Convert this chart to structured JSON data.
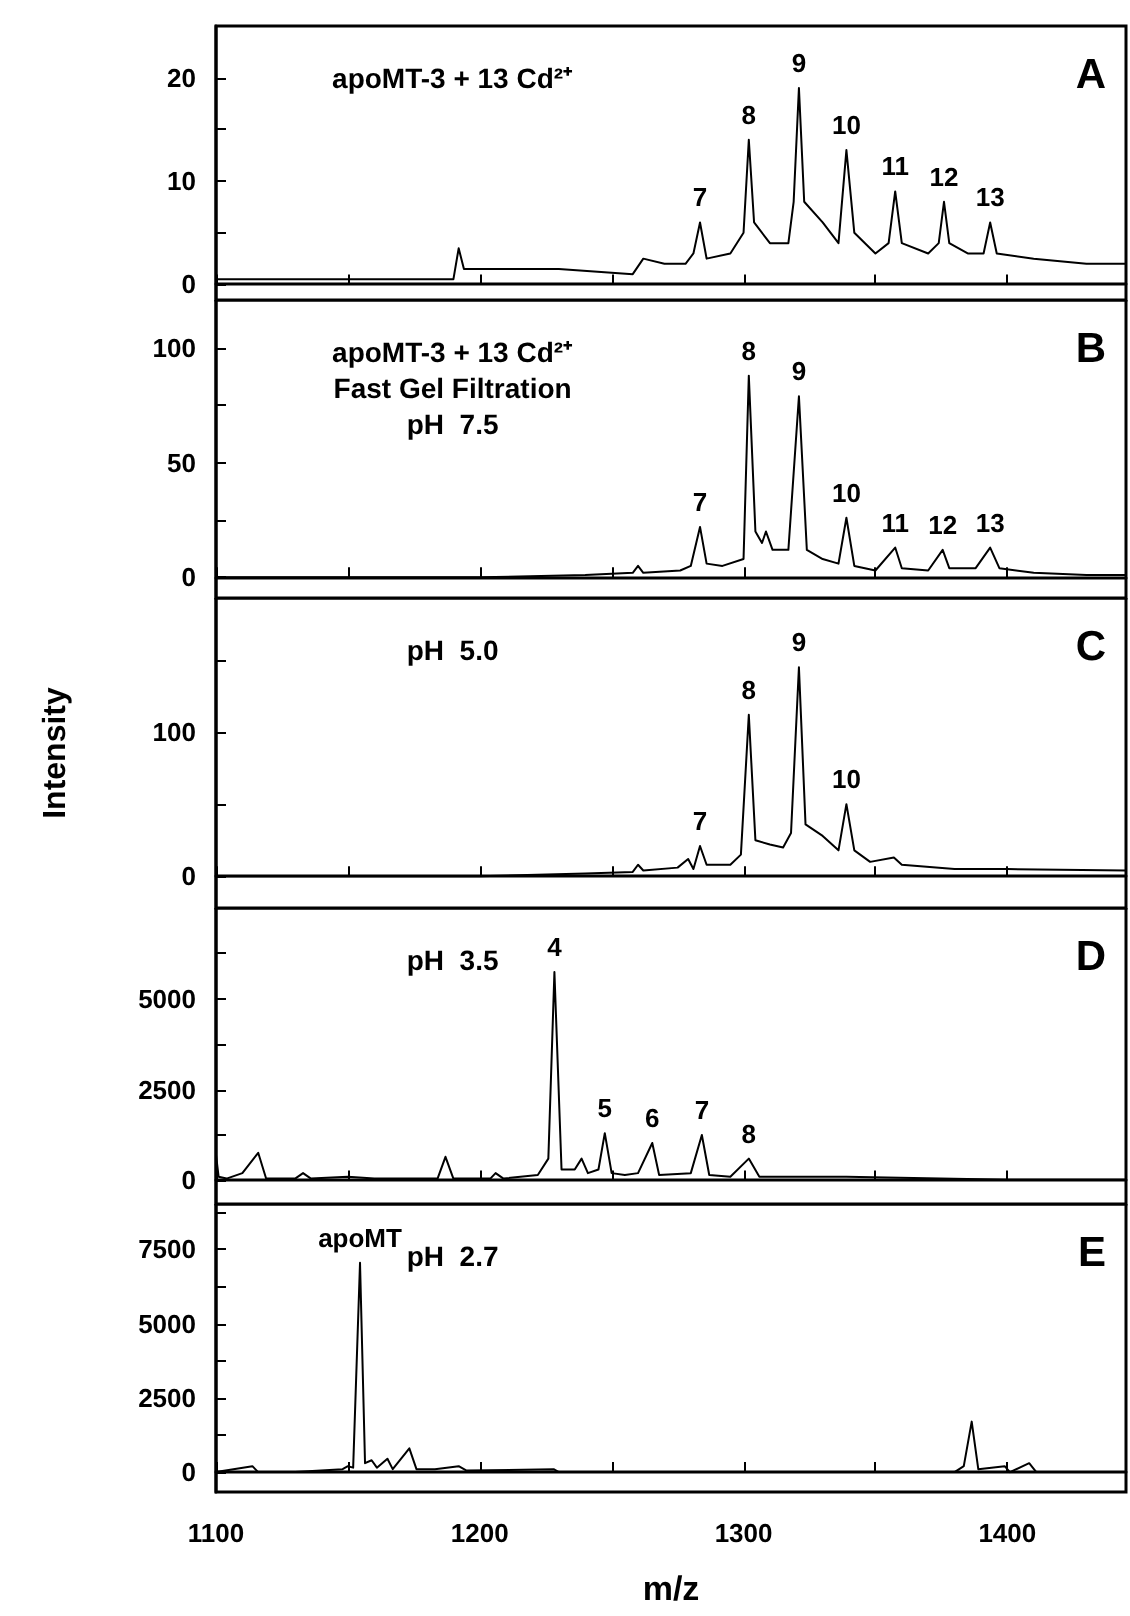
{
  "chart_data": [
    {
      "type": "line",
      "title": "A",
      "annotations": [
        "apoMT-3 + 13 Cd²⁺",
        {
          "text": "7",
          "x": 1283.5,
          "y": 6
        },
        {
          "text": "8",
          "x": 1302,
          "y": 14
        },
        {
          "text": "9",
          "x": 1321,
          "y": 19
        },
        {
          "text": "10",
          "x": 1339,
          "y": 13
        },
        {
          "text": "11",
          "x": 1357.5,
          "y": 9
        },
        {
          "text": "12",
          "x": 1376,
          "y": 8
        },
        {
          "text": "13",
          "x": 1393.5,
          "y": 6
        }
      ],
      "x": [
        1100,
        1150,
        1190,
        1192,
        1194,
        1230,
        1258,
        1262,
        1270,
        1278,
        1281,
        1283.5,
        1286,
        1295,
        1300,
        1302,
        1304,
        1310,
        1317,
        1319,
        1321,
        1323,
        1330,
        1336,
        1339,
        1342,
        1350,
        1355,
        1357.5,
        1360,
        1370,
        1374,
        1376,
        1378,
        1385,
        1391,
        1393.5,
        1396,
        1410,
        1430,
        1445
      ],
      "series": [
        {
          "color": "#000000",
          "values": [
            0.5,
            0.5,
            0.5,
            3.5,
            1.5,
            1.5,
            1,
            2.5,
            2,
            2,
            3,
            6,
            2.5,
            3,
            5,
            14,
            6,
            4,
            4,
            8,
            19,
            8,
            6,
            4,
            13,
            5,
            3,
            4,
            9,
            4,
            3,
            4,
            8,
            4,
            3,
            3,
            6,
            3,
            2.5,
            2,
            2
          ]
        }
      ],
      "xlim": [
        1100,
        1445
      ],
      "xticks": [
        1100,
        {
          "value": 1150,
          "label": null
        },
        1200,
        {
          "value": 1250,
          "label": null
        },
        1300,
        {
          "value": 1350,
          "label": null
        },
        1400
      ],
      "ylim": [
        -1.5,
        25
      ],
      "yticks": [
        0,
        {
          "value": 5,
          "label": null
        },
        10,
        {
          "value": 15,
          "label": null
        },
        20
      ],
      "tick_labels": "y"
    },
    {
      "type": "line",
      "title": "B",
      "annotations": [
        "apoMT-3 + 13 Cd²⁺",
        "Fast Gel Filtration",
        "pH  7.5",
        {
          "text": "7",
          "x": 1283.5,
          "y": 22
        },
        {
          "text": "8",
          "x": 1302,
          "y": 88
        },
        {
          "text": "9",
          "x": 1321,
          "y": 79
        },
        {
          "text": "10",
          "x": 1339,
          "y": 26
        },
        {
          "text": "11",
          "x": 1357.5,
          "y": 13
        },
        {
          "text": "12",
          "x": 1375.5,
          "y": 12
        },
        {
          "text": "13",
          "x": 1393.5,
          "y": 13
        }
      ],
      "x": [
        1100,
        1150,
        1200,
        1240,
        1258,
        1260,
        1262,
        1276,
        1280,
        1283.5,
        1286,
        1292,
        1300,
        1302,
        1304.5,
        1307,
        1308.5,
        1311,
        1317,
        1321,
        1324,
        1330,
        1336,
        1339,
        1342,
        1350,
        1357.5,
        1360,
        1370,
        1375.5,
        1378,
        1388,
        1393.5,
        1397,
        1410,
        1430,
        1445
      ],
      "series": [
        {
          "color": "#000000",
          "values": [
            0,
            0,
            0,
            1,
            2,
            5,
            2,
            3,
            5,
            22,
            6,
            5,
            8,
            88,
            20,
            15,
            20,
            12,
            12,
            79,
            12,
            8,
            6,
            26,
            5,
            3,
            13,
            4,
            3,
            12,
            4,
            4,
            13,
            4,
            2,
            1,
            1
          ]
        }
      ],
      "xlim": [
        1100,
        1445
      ],
      "xticks": [
        1100,
        {
          "value": 1150,
          "label": null
        },
        1200,
        {
          "value": 1250,
          "label": null
        },
        1300,
        {
          "value": 1350,
          "label": null
        },
        1400
      ],
      "ylim": [
        -9,
        121
      ],
      "yticks": [
        0,
        {
          "value": 25,
          "label": null
        },
        50,
        {
          "value": 75,
          "label": null
        },
        100
      ],
      "tick_labels": "y"
    },
    {
      "type": "line",
      "title": "C",
      "ylabel": "Intensity",
      "annotations": [
        "pH  5.0",
        {
          "text": "7",
          "x": 1283.5,
          "y": 21
        },
        {
          "text": "8",
          "x": 1302,
          "y": 112
        },
        {
          "text": "9",
          "x": 1321,
          "y": 145
        },
        {
          "text": "10",
          "x": 1339,
          "y": 50
        }
      ],
      "x": [
        1100,
        1200,
        1240,
        1258,
        1260,
        1262,
        1275,
        1279,
        1281,
        1283.5,
        1286,
        1295,
        1299,
        1302,
        1304.5,
        1310,
        1315,
        1318,
        1321,
        1323.5,
        1330,
        1336,
        1339,
        1342,
        1348,
        1357,
        1360,
        1380,
        1400,
        1445
      ],
      "series": [
        {
          "color": "#000000",
          "values": [
            0,
            0,
            2,
            3,
            8,
            4,
            6,
            12,
            5,
            21,
            8,
            8,
            15,
            112,
            25,
            22,
            20,
            30,
            145,
            36,
            28,
            18,
            50,
            18,
            10,
            13,
            8,
            5,
            5,
            4
          ]
        }
      ],
      "xlim": [
        1100,
        1445
      ],
      "xticks": [
        1100,
        {
          "value": 1150,
          "label": null
        },
        1200,
        {
          "value": 1250,
          "label": null
        },
        1300,
        {
          "value": 1350,
          "label": null
        },
        1400
      ],
      "ylim": [
        -22,
        193
      ],
      "yticks": [
        0,
        {
          "value": 50,
          "label": null
        },
        100,
        {
          "value": 150,
          "label": null
        }
      ],
      "tick_labels": "y"
    },
    {
      "type": "line",
      "title": "D",
      "annotations": [
        "pH  3.5",
        {
          "text": "4",
          "x": 1228.3,
          "y": 5740
        },
        {
          "text": "5",
          "x": 1247.4,
          "y": 1300
        },
        {
          "text": "6",
          "x": 1265.4,
          "y": 1030
        },
        {
          "text": "7",
          "x": 1284.2,
          "y": 1250
        },
        {
          "text": "8",
          "x": 1302,
          "y": 600
        }
      ],
      "x": [
        1100,
        1101,
        1104,
        1110,
        1116,
        1119,
        1130,
        1133,
        1136,
        1150,
        1160,
        1184,
        1187,
        1190,
        1204,
        1206,
        1209,
        1222,
        1226,
        1228.3,
        1231,
        1236,
        1238.6,
        1241,
        1245,
        1247.4,
        1250,
        1255,
        1260,
        1265.4,
        1268,
        1280,
        1284.2,
        1287,
        1295,
        1302,
        1306,
        1320.5,
        1339,
        1400,
        1445
      ],
      "series": [
        {
          "color": "#000000",
          "values": [
            700,
            100,
            50,
            200,
            760,
            50,
            50,
            200,
            50,
            100,
            50,
            50,
            650,
            50,
            50,
            200,
            50,
            150,
            600,
            5740,
            300,
            300,
            600,
            200,
            300,
            1300,
            200,
            150,
            200,
            1030,
            150,
            200,
            1250,
            150,
            100,
            600,
            100,
            100,
            100,
            20,
            20
          ]
        }
      ],
      "xlim": [
        1100,
        1445
      ],
      "xticks": [
        1100,
        {
          "value": 1150,
          "label": null
        },
        1200,
        {
          "value": 1250,
          "label": null
        },
        1300,
        {
          "value": 1350,
          "label": null
        },
        1400
      ],
      "ylim": [
        -650,
        7500
      ],
      "yticks": [
        0,
        {
          "value": 1250,
          "label": null
        },
        2500,
        {
          "value": 3750,
          "label": null
        },
        5000,
        {
          "value": 6250,
          "label": null
        }
      ],
      "tick_labels": "y"
    },
    {
      "type": "line",
      "title": "E",
      "xlabel": "m/z",
      "annotations": [
        "pH  2.7",
        {
          "text": "apoMT",
          "x": 1154.6,
          "y": 7050
        }
      ],
      "x": [
        1100,
        1113.8,
        1116,
        1130,
        1148,
        1150,
        1152,
        1154.6,
        1156.5,
        1159,
        1161,
        1165,
        1167,
        1173.3,
        1176,
        1183,
        1192,
        1195,
        1228,
        1230,
        1300,
        1380,
        1383.5,
        1386.5,
        1389,
        1399,
        1401,
        1408.3,
        1411,
        1430,
        1445
      ],
      "series": [
        {
          "color": "#000000",
          "values": [
            0,
            200,
            0,
            0,
            100,
            200,
            150,
            7050,
            300,
            400,
            150,
            450,
            100,
            800,
            100,
            100,
            200,
            50,
            100,
            0,
            0,
            0,
            200,
            1700,
            100,
            200,
            0,
            300,
            0,
            0,
            0
          ]
        }
      ],
      "xlim": [
        1100,
        1445
      ],
      "xticks": [
        1100,
        {
          "value": 1150,
          "label": null
        },
        1200,
        {
          "value": 1250,
          "label": null
        },
        1300,
        {
          "value": 1350,
          "label": null
        },
        1400
      ],
      "ylim": [
        -670,
        9030
      ],
      "yticks": [
        0,
        {
          "value": 1250,
          "label": null
        },
        2500,
        {
          "value": 3750,
          "label": null
        },
        5000,
        {
          "value": 6250,
          "label": null
        },
        7500,
        {
          "value": 8750,
          "label": null
        }
      ]
    }
  ]
}
